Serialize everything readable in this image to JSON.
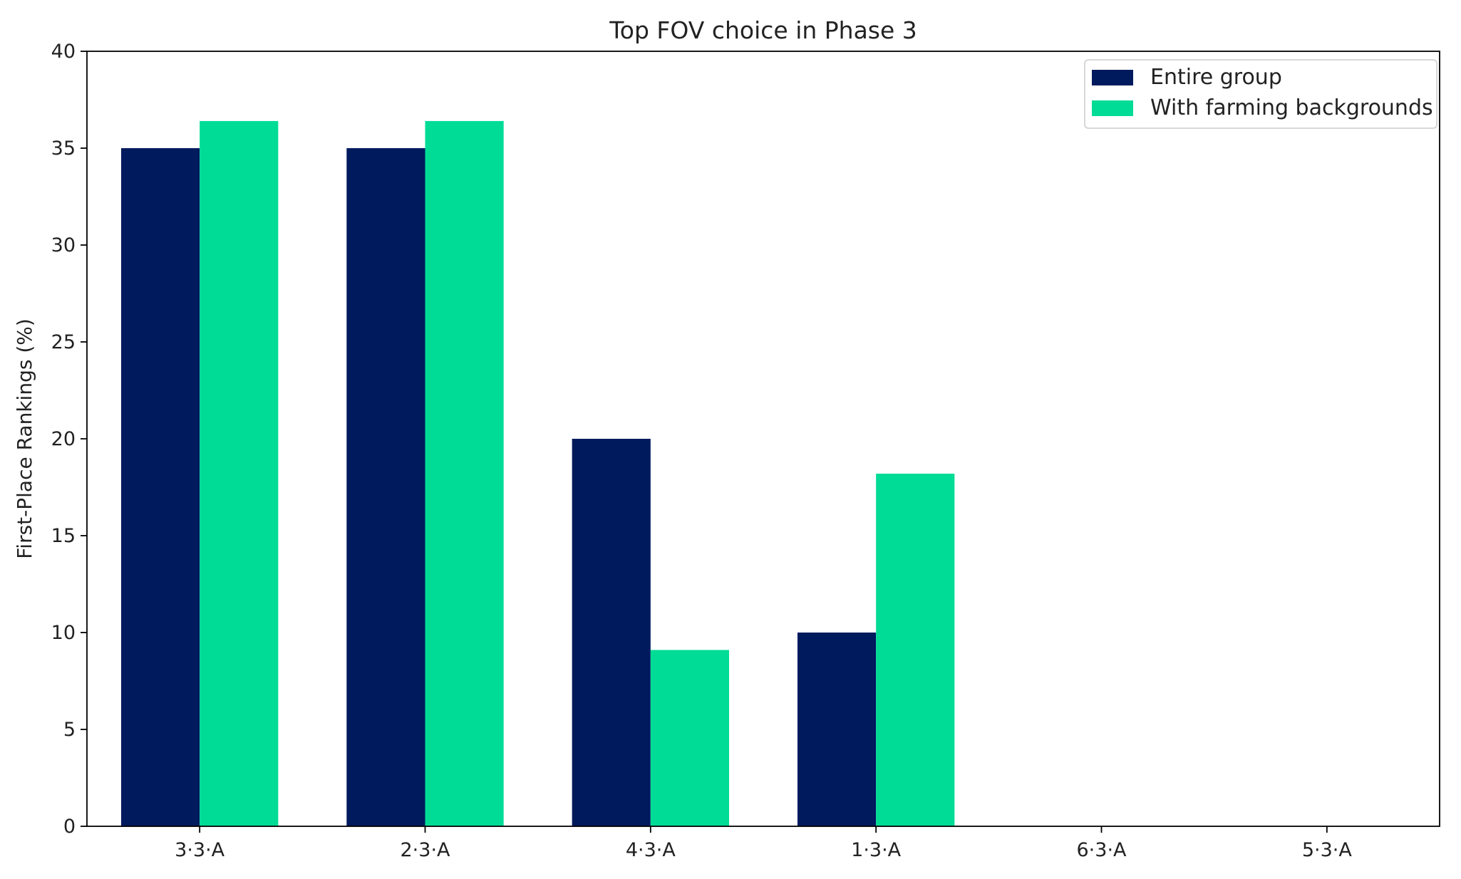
{
  "chart_data": {
    "type": "bar",
    "title": "Top FOV choice in Phase 3",
    "xlabel": "",
    "ylabel": "First-Place Rankings (%)",
    "categories": [
      "3·3·A",
      "2·3·A",
      "4·3·A",
      "1·3·A",
      "6·3·A",
      "5·3·A"
    ],
    "series": [
      {
        "name": "Entire group",
        "color": "#001a5e",
        "values": [
          35,
          35,
          20,
          10,
          0,
          0
        ]
      },
      {
        "name": "With farming backgrounds",
        "color": "#00dc96",
        "values": [
          36.4,
          36.4,
          9.1,
          18.2,
          0,
          0
        ]
      }
    ],
    "ylim": [
      0,
      40
    ],
    "yticks": [
      0,
      5,
      10,
      15,
      20,
      25,
      30,
      35,
      40
    ],
    "grid": false,
    "legend_position": "top-right"
  }
}
